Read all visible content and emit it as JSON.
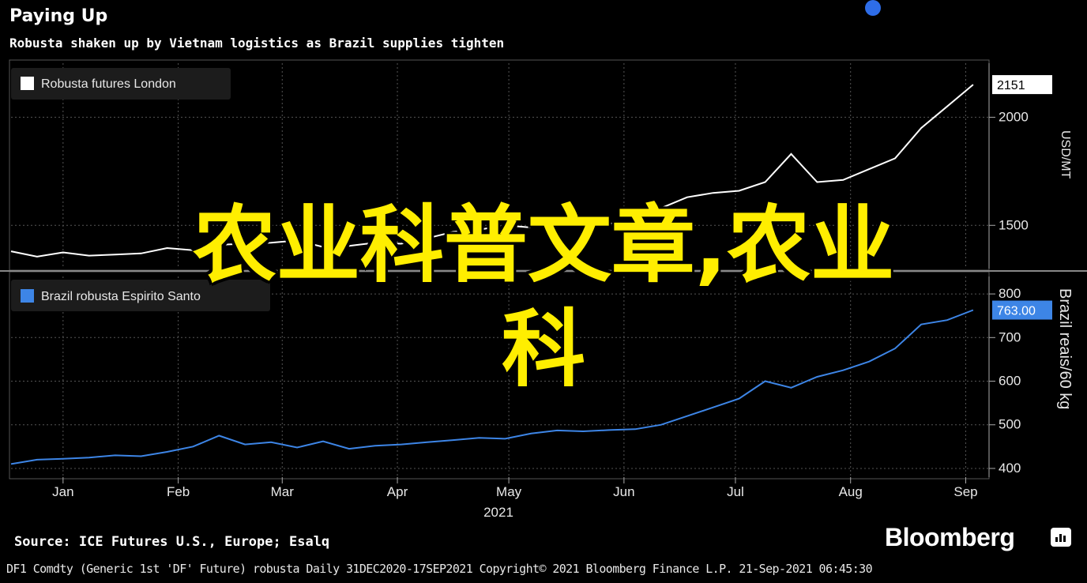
{
  "header": {
    "title": "Paying Up",
    "subtitle": "Robusta shaken up by Vietnam logistics as Brazil supplies tighten"
  },
  "overlay": {
    "line1": "农业科普文章,农业",
    "line2": "科"
  },
  "chart_data": [
    {
      "type": "line",
      "series": [
        {
          "name": "Robusta futures London",
          "color": "#ffffff",
          "x": [
            "2021-01-01",
            "2021-01-08",
            "2021-01-15",
            "2021-01-22",
            "2021-01-29",
            "2021-02-05",
            "2021-02-12",
            "2021-02-19",
            "2021-02-26",
            "2021-03-05",
            "2021-03-12",
            "2021-03-19",
            "2021-03-26",
            "2021-04-02",
            "2021-04-09",
            "2021-04-16",
            "2021-04-23",
            "2021-04-30",
            "2021-05-07",
            "2021-05-14",
            "2021-05-21",
            "2021-05-28",
            "2021-06-04",
            "2021-06-11",
            "2021-06-18",
            "2021-06-25",
            "2021-07-02",
            "2021-07-09",
            "2021-07-16",
            "2021-07-23",
            "2021-07-30",
            "2021-08-06",
            "2021-08-13",
            "2021-08-20",
            "2021-08-27",
            "2021-09-03",
            "2021-09-10",
            "2021-09-17"
          ],
          "values": [
            1380,
            1355,
            1375,
            1360,
            1365,
            1370,
            1395,
            1385,
            1410,
            1415,
            1420,
            1430,
            1400,
            1405,
            1420,
            1415,
            1440,
            1470,
            1480,
            1500,
            1490,
            1530,
            1505,
            1510,
            1500,
            1580,
            1630,
            1650,
            1660,
            1700,
            1830,
            1700,
            1710,
            1760,
            1810,
            1950,
            2050,
            2151
          ]
        }
      ],
      "ylim": [
        1300,
        2250
      ],
      "yticks": [
        1500,
        2000
      ],
      "ylabel": "USD/MT",
      "last_value_label": "2151"
    },
    {
      "type": "line",
      "series": [
        {
          "name": "Brazil robusta Espirito Santo",
          "color": "#3d85e6",
          "x": [
            "2021-01-01",
            "2021-01-08",
            "2021-01-15",
            "2021-01-22",
            "2021-01-29",
            "2021-02-05",
            "2021-02-12",
            "2021-02-19",
            "2021-02-26",
            "2021-03-05",
            "2021-03-12",
            "2021-03-19",
            "2021-03-26",
            "2021-04-02",
            "2021-04-09",
            "2021-04-16",
            "2021-04-23",
            "2021-04-30",
            "2021-05-07",
            "2021-05-14",
            "2021-05-21",
            "2021-05-28",
            "2021-06-04",
            "2021-06-11",
            "2021-06-18",
            "2021-06-25",
            "2021-07-02",
            "2021-07-09",
            "2021-07-16",
            "2021-07-23",
            "2021-07-30",
            "2021-08-06",
            "2021-08-13",
            "2021-08-20",
            "2021-08-27",
            "2021-09-03",
            "2021-09-10",
            "2021-09-17"
          ],
          "values": [
            410,
            420,
            422,
            425,
            430,
            428,
            438,
            450,
            475,
            455,
            460,
            448,
            462,
            445,
            452,
            455,
            460,
            465,
            470,
            468,
            480,
            487,
            485,
            488,
            490,
            500,
            520,
            540,
            560,
            600,
            585,
            610,
            625,
            645,
            675,
            730,
            740,
            763
          ]
        }
      ],
      "ylim": [
        380,
        840
      ],
      "yticks": [
        400,
        500,
        600,
        700,
        800
      ],
      "ylabel": "Brazil reais/60 kg",
      "last_value_label": "763.00"
    }
  ],
  "xaxis": {
    "ticks": [
      {
        "label": "Jan",
        "date": "2021-01-15"
      },
      {
        "label": "Feb",
        "date": "2021-02-15"
      },
      {
        "label": "Mar",
        "date": "2021-03-15"
      },
      {
        "label": "Apr",
        "date": "2021-04-15"
      },
      {
        "label": "May",
        "date": "2021-05-15"
      },
      {
        "label": "Jun",
        "date": "2021-06-15"
      },
      {
        "label": "Jul",
        "date": "2021-07-15"
      },
      {
        "label": "Aug",
        "date": "2021-08-15"
      },
      {
        "label": "Sep",
        "date": "2021-09-15"
      }
    ],
    "year_label": "2021"
  },
  "footer": {
    "source": "Source: ICE Futures U.S., Europe; Esalq",
    "brand": "Bloomberg",
    "line": "DF1 Comdty (Generic 1st 'DF' Future) robusta  Daily 31DEC2020-17SEP2021  Copyright© 2021 Bloomberg Finance L.P.  21-Sep-2021 06:45:30"
  },
  "colors": {
    "background": "#000000",
    "overlay_text": "#ffee00",
    "accent_dot": "#2e6de8"
  }
}
